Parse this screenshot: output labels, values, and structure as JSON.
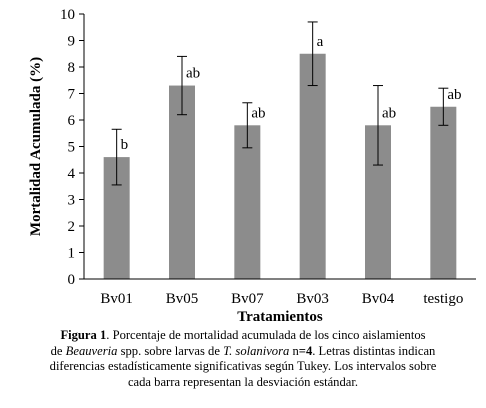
{
  "chart_data": {
    "type": "bar",
    "categories": [
      "Bv01",
      "Bv05",
      "Bv07",
      "Bv03",
      "Bv04",
      "testigo"
    ],
    "values": [
      4.6,
      7.3,
      5.8,
      8.5,
      5.8,
      6.5
    ],
    "error_sd": [
      1.05,
      1.1,
      0.85,
      1.2,
      1.5,
      0.7
    ],
    "significance_letters": [
      "b",
      "ab",
      "ab",
      "a",
      "ab",
      "ab"
    ],
    "xlabel": "Tratamientos",
    "ylabel": "Mortalidad Acumulada (%)",
    "ylim": [
      0,
      10
    ],
    "yticks": [
      0,
      1,
      2,
      3,
      4,
      5,
      6,
      7,
      8,
      9,
      10
    ],
    "bar_color": "#8c8c8c",
    "grid": false,
    "legend": "none"
  },
  "caption": {
    "figure_label": "Figura 1",
    "text_1": ". Porcentaje de mortalidad  acumulada de los cinco aislamientos",
    "text_2a": "de ",
    "genus": "Beauveria",
    "text_2b": " spp. sobre larvas de ",
    "species": "T. solanivora",
    "text_2c": " n",
    "n_value": "=4",
    "text_2d": ". Letras distintas indican",
    "text_3": "diferencias estadísticamente significativas según Tukey. Los intervalos sobre",
    "text_4": "cada barra representan la desviación estándar."
  }
}
